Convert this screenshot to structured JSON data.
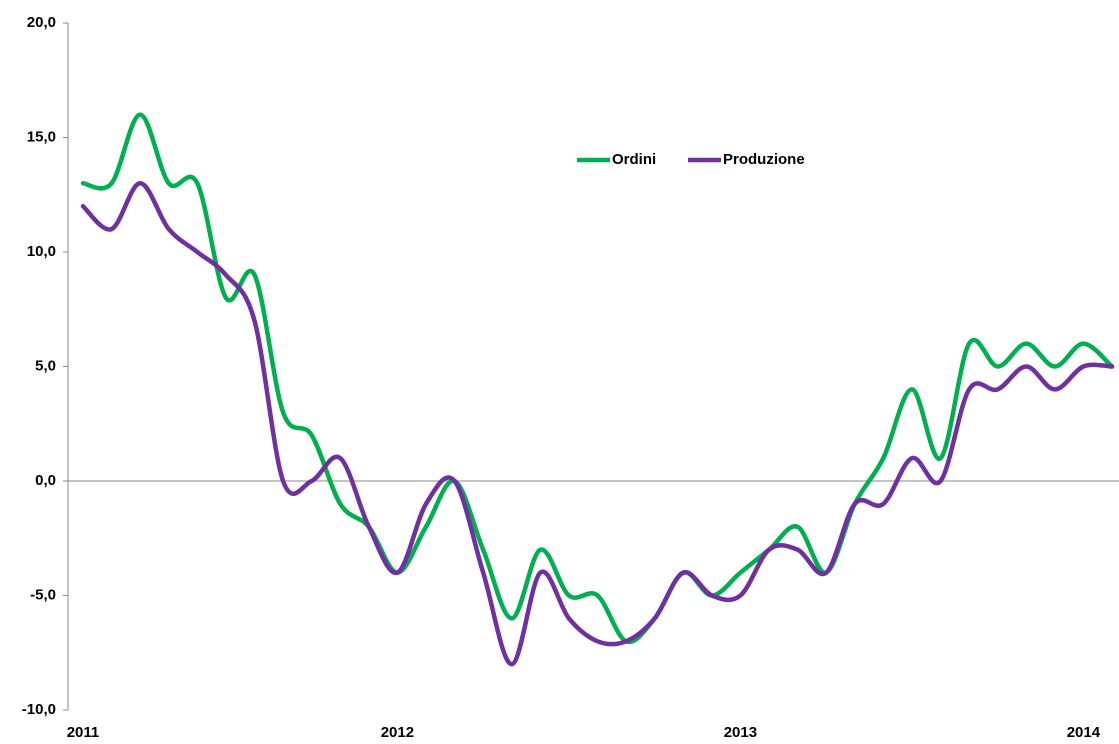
{
  "chart_data": {
    "type": "line",
    "categories": [
      "2011",
      null,
      null,
      null,
      null,
      null,
      null,
      null,
      null,
      null,
      null,
      "2012",
      null,
      null,
      null,
      null,
      null,
      null,
      null,
      null,
      null,
      null,
      null,
      "2013",
      null,
      null,
      null,
      null,
      null,
      null,
      null,
      null,
      null,
      null,
      null,
      "2014",
      null
    ],
    "series": [
      {
        "name": "Ordini",
        "color": "#00b050",
        "values": [
          13.0,
          13.0,
          16.0,
          13.0,
          13.0,
          8.0,
          9.0,
          3.0,
          2.0,
          -1.0,
          -2.0,
          -4.0,
          -2.0,
          0.0,
          -3.0,
          -6.0,
          -3.0,
          -5.0,
          -5.0,
          -7.0,
          -6.0,
          -4.0,
          -5.0,
          -4.0,
          -3.0,
          -2.0,
          -4.0,
          -1.0,
          1.0,
          4.0,
          1.0,
          6.0,
          5.0,
          6.0,
          5.0,
          6.0,
          5.0
        ]
      },
      {
        "name": "Produzione",
        "color": "#7030a0",
        "values": [
          12.0,
          11.0,
          13.0,
          11.0,
          10.0,
          9.0,
          7.0,
          0.0,
          0.0,
          1.0,
          -2.0,
          -4.0,
          -1.0,
          0.0,
          -4.0,
          -8.0,
          -4.0,
          -6.0,
          -7.0,
          -7.0,
          -6.0,
          -4.0,
          -5.0,
          -5.0,
          -3.0,
          -3.0,
          -4.0,
          -1.0,
          -1.0,
          1.0,
          0.0,
          4.0,
          4.0,
          5.0,
          4.0,
          5.0,
          5.0
        ]
      }
    ],
    "ylim": [
      -10,
      20
    ],
    "yticks": [
      {
        "value": -10,
        "label": "-10,0"
      },
      {
        "value": -5,
        "label": "-5,0"
      },
      {
        "value": 0,
        "label": "0,0"
      },
      {
        "value": 5,
        "label": "5,0"
      },
      {
        "value": 10,
        "label": "10,0"
      },
      {
        "value": 15,
        "label": "15,0"
      },
      {
        "value": 20,
        "label": "20,0"
      }
    ],
    "grid": false,
    "legend": "top"
  }
}
